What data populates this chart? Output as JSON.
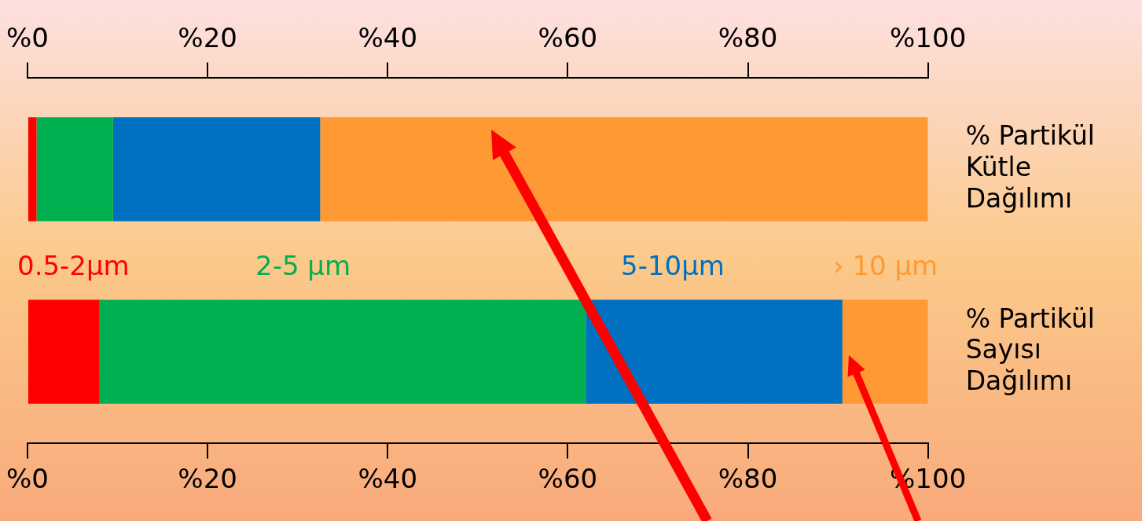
{
  "chart_data": {
    "type": "bar",
    "orientation": "horizontal",
    "stacked": true,
    "categories": [
      "% Partikül Kütle Dağılımı",
      "% Partikül Sayısı Dağılımı"
    ],
    "series": [
      {
        "name": "0.5-2µm",
        "color": "#ff0000",
        "values": [
          1,
          8
        ]
      },
      {
        "name": "2-5 µm",
        "color": "#00b050",
        "values": [
          8.5,
          54
        ]
      },
      {
        "name": "5-10µm",
        "color": "#0070c0",
        "values": [
          23,
          28.5
        ]
      },
      {
        "name": "› 10 µm",
        "color": "#ff9933",
        "values": [
          67.5,
          9.5
        ]
      }
    ],
    "xlim": [
      0,
      100
    ],
    "xticks": [
      {
        "value": 0,
        "label": "%0"
      },
      {
        "value": 20,
        "label": "%20"
      },
      {
        "value": 40,
        "label": "%40"
      },
      {
        "value": 60,
        "label": "%60"
      },
      {
        "value": 80,
        "label": "%80"
      },
      {
        "value": 100,
        "label": "%100"
      }
    ],
    "x2lim": [
      0,
      100
    ],
    "x2ticks": [
      {
        "value": 0,
        "label": "%0"
      },
      {
        "value": 20,
        "label": "%20"
      },
      {
        "value": 40,
        "label": "%40"
      },
      {
        "value": 60,
        "label": "%60"
      },
      {
        "value": 80,
        "label": "%80"
      },
      {
        "value": 100,
        "label": "%100"
      }
    ],
    "legend": "center"
  }
}
